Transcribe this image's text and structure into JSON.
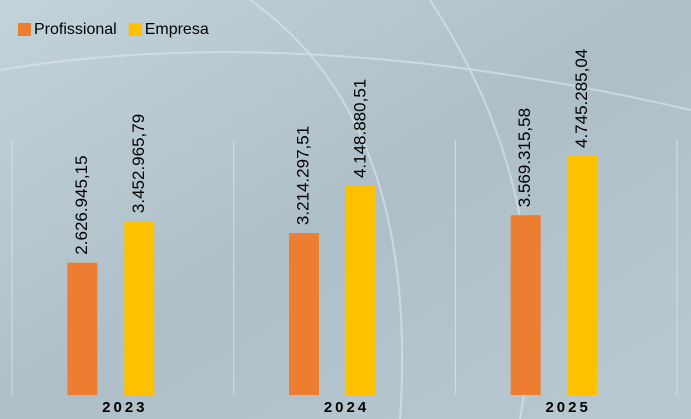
{
  "chart_data": {
    "type": "bar",
    "categories": [
      "2023",
      "2024",
      "2025"
    ],
    "series": [
      {
        "name": "Profissional",
        "color": "#ed7d31",
        "values": [
          2626945.15,
          3214297.51,
          3569315.58
        ],
        "value_labels": [
          "2.626.945,15",
          "3.214.297,51",
          "3.569.315,58"
        ]
      },
      {
        "name": "Empresa",
        "color": "#ffc000",
        "values": [
          3452965.79,
          4148880.51,
          4745285.04
        ],
        "value_labels": [
          "3.452.965,79",
          "4.148.880,51",
          "4.745.285,04"
        ]
      }
    ],
    "legend": "top-left"
  }
}
